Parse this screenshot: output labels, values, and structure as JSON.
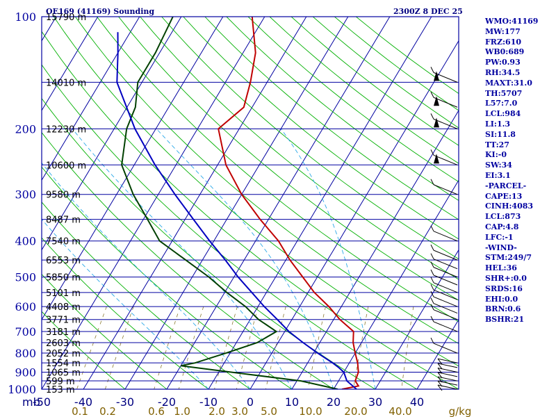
{
  "header": {
    "station": "OE169 (41169) Sounding",
    "time": "2300Z  8 DEC 25"
  },
  "colors": {
    "isobar": "#0000a0",
    "isotherm": "#0000a0",
    "dry_adiabat": "#00b000",
    "moist_adiabat": "#2aa8e8",
    "mixing_ratio": "#8a7a30",
    "temperature": "#c00000",
    "dewpoint": "#004000",
    "parcel": "#0000c0",
    "wind_barb": "#000000"
  },
  "chart_data": {
    "type": "skew-t",
    "pressure_axis": {
      "levels": [
        100,
        200,
        300,
        400,
        500,
        600,
        700,
        800,
        900,
        1000
      ],
      "unit_label": "mb",
      "scale": "log",
      "range": [
        100,
        1000
      ]
    },
    "height_labels": [
      {
        "p": 100,
        "label": "15790 m"
      },
      {
        "p": 150,
        "label": "14010 m"
      },
      {
        "p": 200,
        "label": "12230 m"
      },
      {
        "p": 250,
        "label": "10600 m"
      },
      {
        "p": 300,
        "label": "9580 m"
      },
      {
        "p": 350,
        "label": "8487 m"
      },
      {
        "p": 400,
        "label": "7540 m"
      },
      {
        "p": 450,
        "label": "6553 m"
      },
      {
        "p": 500,
        "label": "5850 m"
      },
      {
        "p": 550,
        "label": "5101 m"
      },
      {
        "p": 600,
        "label": "4408 m"
      },
      {
        "p": 650,
        "label": "3771 m"
      },
      {
        "p": 700,
        "label": "3181 m"
      },
      {
        "p": 750,
        "label": "2603 m"
      },
      {
        "p": 800,
        "label": "2052 m"
      },
      {
        "p": 850,
        "label": "1554 m"
      },
      {
        "p": 900,
        "label": "1065 m"
      },
      {
        "p": 950,
        "label": "599 m"
      },
      {
        "p": 1000,
        "label": "153 m"
      }
    ],
    "temperature_axis": {
      "ticks": [
        "-50",
        "-40",
        "-30",
        "-20",
        "-10",
        "0",
        "10",
        "20",
        "30",
        "40"
      ],
      "range": [
        -50,
        50
      ]
    },
    "mixing_ratio_axis": {
      "ticks": [
        "0.1",
        "0.2",
        "0.6",
        "1.0",
        "2.0",
        "3.0",
        "5.0",
        "10.0",
        "20.0",
        "40.0"
      ],
      "unit_label": "g/kg"
    },
    "series": [
      {
        "key": "temperature",
        "points": [
          [
            1000,
            22
          ],
          [
            980,
            25.5
          ],
          [
            950,
            24
          ],
          [
            900,
            23.5
          ],
          [
            850,
            22
          ],
          [
            800,
            20
          ],
          [
            750,
            18
          ],
          [
            700,
            16.5
          ],
          [
            650,
            11.5
          ],
          [
            600,
            7
          ],
          [
            550,
            1.5
          ],
          [
            500,
            -3.5
          ],
          [
            450,
            -9
          ],
          [
            400,
            -14.5
          ],
          [
            350,
            -22
          ],
          [
            300,
            -30
          ],
          [
            250,
            -38
          ],
          [
            200,
            -45
          ],
          [
            175,
            -42
          ],
          [
            150,
            -44
          ],
          [
            125,
            -47
          ],
          [
            100,
            -53
          ]
        ]
      },
      {
        "key": "dewpoint",
        "points": [
          [
            1000,
            21
          ],
          [
            950,
            11
          ],
          [
            900,
            -7
          ],
          [
            865,
            -20
          ],
          [
            850,
            -17
          ],
          [
            800,
            -11
          ],
          [
            750,
            -5
          ],
          [
            700,
            -2
          ],
          [
            650,
            -8
          ],
          [
            600,
            -13
          ],
          [
            550,
            -19.5
          ],
          [
            500,
            -26
          ],
          [
            450,
            -34
          ],
          [
            400,
            -43
          ],
          [
            350,
            -49
          ],
          [
            300,
            -56
          ],
          [
            250,
            -63
          ],
          [
            200,
            -67
          ],
          [
            175,
            -68
          ],
          [
            150,
            -71
          ],
          [
            125,
            -71
          ],
          [
            100,
            -72
          ]
        ]
      },
      {
        "key": "parcel",
        "points": [
          [
            1000,
            25.5
          ],
          [
            950,
            22
          ],
          [
            900,
            20
          ],
          [
            873,
            18
          ],
          [
            850,
            16
          ],
          [
            800,
            11
          ],
          [
            750,
            6
          ],
          [
            700,
            1
          ],
          [
            650,
            -3.5
          ],
          [
            600,
            -8.5
          ],
          [
            550,
            -13.5
          ],
          [
            500,
            -19
          ],
          [
            450,
            -24.5
          ],
          [
            400,
            -31
          ],
          [
            350,
            -38
          ],
          [
            300,
            -46
          ],
          [
            250,
            -55
          ],
          [
            200,
            -65
          ],
          [
            150,
            -76
          ],
          [
            125,
            -80
          ],
          [
            110,
            -83
          ]
        ]
      }
    ],
    "wind_levels": [
      1000,
      975,
      950,
      925,
      900,
      875,
      850,
      800,
      700,
      650,
      625,
      600,
      575,
      550,
      525,
      500,
      475,
      450,
      400,
      300,
      250,
      200,
      175,
      150
    ],
    "grid": true
  },
  "indices": [
    "WMO:41169",
    "MW:177",
    "FRZ:610",
    "WB0:689",
    "PW:0.93",
    "RH:34.5",
    "MAXT:31.0",
    "TH:5707",
    "L57:7.0",
    "LCL:984",
    "LI:1.3",
    "SI:11.8",
    "TT:27",
    "KI:-0",
    "SW:34",
    "EI:3.1",
    "-PARCEL-",
    "CAPE:13",
    "CINH:4083",
    "LCL:873",
    "CAP:4.8",
    "LFC:-1",
    "-WIND-",
    "STM:249/7",
    "HEL:36",
    "SHR+:0.0",
    "SRDS:16",
    "EHI:0.0",
    "BRN:0.6",
    "BSHR:21"
  ]
}
